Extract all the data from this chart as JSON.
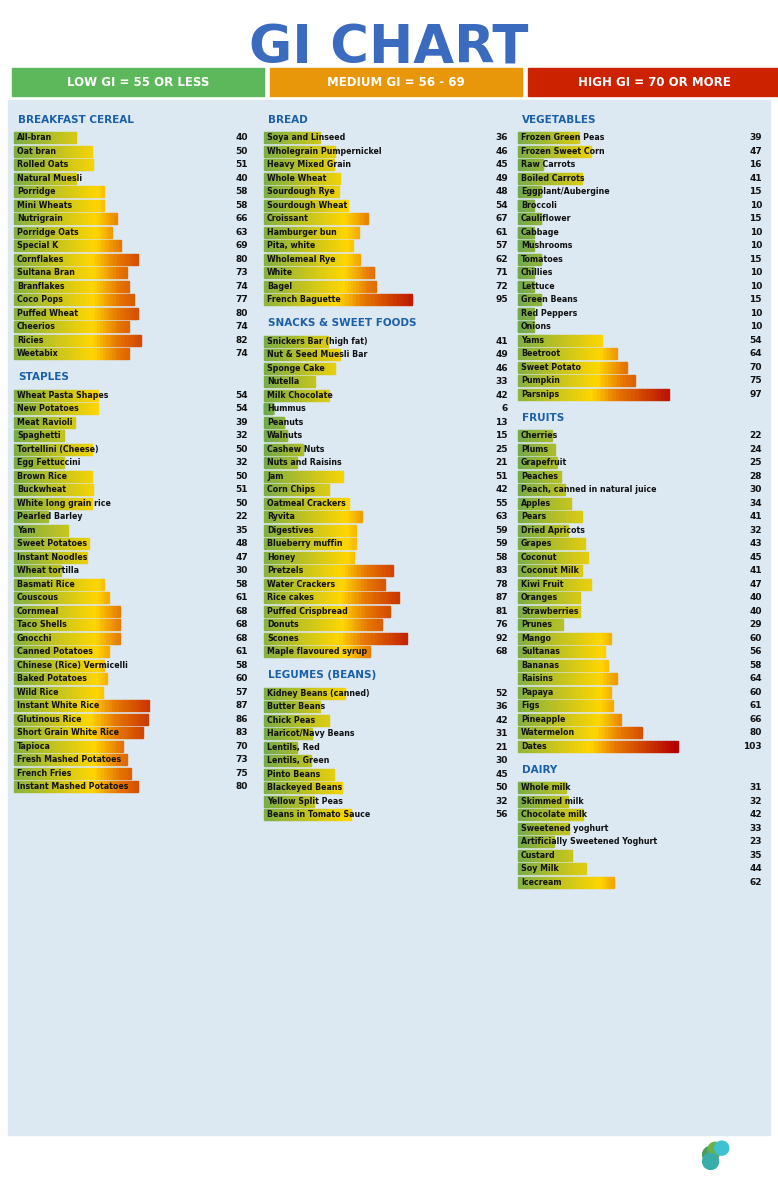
{
  "title": "GI CHART",
  "title_color": "#3a6bbf",
  "bg_color": "#dce8f2",
  "legend_items": [
    {
      "label": "LOW GI = 55 OR LESS",
      "bg": "#5db85b"
    },
    {
      "label": "MEDIUM GI = 56 - 69",
      "bg": "#e8960a"
    },
    {
      "label": "HIGH GI = 70 OR MORE",
      "bg": "#cc2200"
    }
  ],
  "max_bar_val": 103,
  "columns": [
    {
      "sections": [
        {
          "header": "BREAKFAST CEREAL",
          "items": [
            [
              "All-bran",
              40
            ],
            [
              "Oat bran",
              50
            ],
            [
              "Rolled Oats",
              51
            ],
            [
              "Natural Muesli",
              40
            ],
            [
              "Porridge",
              58
            ],
            [
              "Mini Wheats",
              58
            ],
            [
              "Nutrigrain",
              66
            ],
            [
              "Porridge Oats",
              63
            ],
            [
              "Special K",
              69
            ],
            [
              "Cornflakes",
              80
            ],
            [
              "Sultana Bran",
              73
            ],
            [
              "Branflakes",
              74
            ],
            [
              "Coco Pops",
              77
            ],
            [
              "Puffed Wheat",
              80
            ],
            [
              "Cheerios",
              74
            ],
            [
              "Ricies",
              82
            ],
            [
              "Weetabix",
              74
            ]
          ]
        },
        {
          "header": "STAPLES",
          "items": [
            [
              "Wheat Pasta Shapes",
              54
            ],
            [
              "New Potatoes",
              54
            ],
            [
              "Meat Ravioli",
              39
            ],
            [
              "Spaghetti",
              32
            ],
            [
              "Tortellini (Cheese)",
              50
            ],
            [
              "Egg Fettuccini",
              32
            ],
            [
              "Brown Rice",
              50
            ],
            [
              "Buckwheat",
              51
            ],
            [
              "White long grain rice",
              50
            ],
            [
              "Pearled Barley",
              22
            ],
            [
              "Yam",
              35
            ],
            [
              "Sweet Potatoes",
              48
            ],
            [
              "Instant Noodles",
              47
            ],
            [
              "Wheat tortilla",
              30
            ],
            [
              "Basmati Rice",
              58
            ],
            [
              "Couscous",
              61
            ],
            [
              "Cornmeal",
              68
            ],
            [
              "Taco Shells",
              68
            ],
            [
              "Gnocchi",
              68
            ],
            [
              "Canned Potatoes",
              61
            ],
            [
              "Chinese (Rice) Vermicelli",
              58
            ],
            [
              "Baked Potatoes",
              60
            ],
            [
              "Wild Rice",
              57
            ],
            [
              "Instant White Rice",
              87
            ],
            [
              "Glutinous Rice",
              86
            ],
            [
              "Short Grain White Rice",
              83
            ],
            [
              "Tapioca",
              70
            ],
            [
              "Fresh Mashed Potatoes",
              73
            ],
            [
              "French Fries",
              75
            ],
            [
              "Instant Mashed Potatoes",
              80
            ]
          ]
        }
      ]
    },
    {
      "sections": [
        {
          "header": "BREAD",
          "items": [
            [
              "Soya and Linseed",
              36
            ],
            [
              "Wholegrain Pumpernickel",
              46
            ],
            [
              "Heavy Mixed Grain",
              45
            ],
            [
              "Whole Wheat",
              49
            ],
            [
              "Sourdough Rye",
              48
            ],
            [
              "Sourdough Wheat",
              54
            ],
            [
              "Croissant",
              67
            ],
            [
              "Hamburger bun",
              61
            ],
            [
              "Pita, white",
              57
            ],
            [
              "Wholemeal Rye",
              62
            ],
            [
              "White",
              71
            ],
            [
              "Bagel",
              72
            ],
            [
              "French Baguette",
              95
            ]
          ]
        },
        {
          "header": "SNACKS & SWEET FOODS",
          "items": [
            [
              "Snickers Bar (high fat)",
              41
            ],
            [
              "Nut & Seed Muesli Bar",
              49
            ],
            [
              "Sponge Cake",
              46
            ],
            [
              "Nutella",
              33
            ],
            [
              "Milk Chocolate",
              42
            ],
            [
              "Hummus",
              6
            ],
            [
              "Peanuts",
              13
            ],
            [
              "Walnuts",
              15
            ],
            [
              "Cashew Nuts",
              25
            ],
            [
              "Nuts and Raisins",
              21
            ],
            [
              "Jam",
              51
            ],
            [
              "Corn Chips",
              42
            ],
            [
              "Oatmeal Crackers",
              55
            ],
            [
              "Ryvita",
              63
            ],
            [
              "Digestives",
              59
            ],
            [
              "Blueberry muffin",
              59
            ],
            [
              "Honey",
              58
            ],
            [
              "Pretzels",
              83
            ],
            [
              "Water Crackers",
              78
            ],
            [
              "Rice cakes",
              87
            ],
            [
              "Puffed Crispbread",
              81
            ],
            [
              "Donuts",
              76
            ],
            [
              "Scones",
              92
            ],
            [
              "Maple flavoured syrup",
              68
            ]
          ]
        },
        {
          "header": "LEGUMES (BEANS)",
          "items": [
            [
              "Kidney Beans (canned)",
              52
            ],
            [
              "Butter Beans",
              36
            ],
            [
              "Chick Peas",
              42
            ],
            [
              "Haricot/Navy Beans",
              31
            ],
            [
              "Lentils, Red",
              21
            ],
            [
              "Lentils, Green",
              30
            ],
            [
              "Pinto Beans",
              45
            ],
            [
              "Blackeyed Beans",
              50
            ],
            [
              "Yellow Split Peas",
              32
            ],
            [
              "Beans in Tomato Sauce",
              56
            ]
          ]
        }
      ]
    },
    {
      "sections": [
        {
          "header": "VEGETABLES",
          "items": [
            [
              "Frozen Green Peas",
              39
            ],
            [
              "Frozen Sweet Corn",
              47
            ],
            [
              "Raw Carrots",
              16
            ],
            [
              "Boiled Carrots",
              41
            ],
            [
              "Eggplant/Aubergine",
              15
            ],
            [
              "Broccoli",
              10
            ],
            [
              "Cauliflower",
              15
            ],
            [
              "Cabbage",
              10
            ],
            [
              "Mushrooms",
              10
            ],
            [
              "Tomatoes",
              15
            ],
            [
              "Chillies",
              10
            ],
            [
              "Lettuce",
              10
            ],
            [
              "Green Beans",
              15
            ],
            [
              "Red Peppers",
              10
            ],
            [
              "Onions",
              10
            ],
            [
              "Yams",
              54
            ],
            [
              "Beetroot",
              64
            ],
            [
              "Sweet Potato",
              70
            ],
            [
              "Pumpkin",
              75
            ],
            [
              "Parsnips",
              97
            ]
          ]
        },
        {
          "header": "FRUITS",
          "items": [
            [
              "Cherries",
              22
            ],
            [
              "Plums",
              24
            ],
            [
              "Grapefruit",
              25
            ],
            [
              "Peaches",
              28
            ],
            [
              "Peach, canned in natural juice",
              30
            ],
            [
              "Apples",
              34
            ],
            [
              "Pears",
              41
            ],
            [
              "Dried Apricots",
              32
            ],
            [
              "Grapes",
              43
            ],
            [
              "Coconut",
              45
            ],
            [
              "Coconut Milk",
              41
            ],
            [
              "Kiwi Fruit",
              47
            ],
            [
              "Oranges",
              40
            ],
            [
              "Strawberries",
              40
            ],
            [
              "Prunes",
              29
            ],
            [
              "Mango",
              60
            ],
            [
              "Sultanas",
              56
            ],
            [
              "Bananas",
              58
            ],
            [
              "Raisins",
              64
            ],
            [
              "Papaya",
              60
            ],
            [
              "Figs",
              61
            ],
            [
              "Pineapple",
              66
            ],
            [
              "Watermelon",
              80
            ],
            [
              "Dates",
              103
            ]
          ]
        },
        {
          "header": "DAIRY",
          "items": [
            [
              "Whole milk",
              31
            ],
            [
              "Skimmed milk",
              32
            ],
            [
              "Chocolate milk",
              42
            ],
            [
              "Sweetened yoghurt",
              33
            ],
            [
              "Artificially Sweetened Yoghurt",
              23
            ],
            [
              "Custard",
              35
            ],
            [
              "Soy Milk",
              44
            ],
            [
              "Icecream",
              62
            ]
          ]
        }
      ]
    }
  ]
}
